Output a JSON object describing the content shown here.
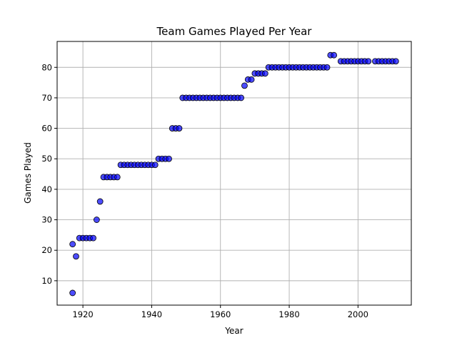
{
  "chart_data": {
    "type": "scatter",
    "title": "Team Games Played Per Year",
    "xlabel": "Year",
    "ylabel": "Games Played",
    "xlim": [
      1912.5,
      2015.5
    ],
    "ylim": [
      2,
      88.5
    ],
    "xticks": [
      1920,
      1940,
      1960,
      1980,
      2000
    ],
    "yticks": [
      10,
      20,
      30,
      40,
      50,
      60,
      70,
      80
    ],
    "grid": true,
    "marker_color": "#0000ff",
    "marker_edge_color": "#000000",
    "series": [
      {
        "points": [
          [
            1917,
            6
          ],
          [
            1917,
            22
          ],
          [
            1918,
            18
          ],
          [
            1919,
            24
          ],
          [
            1920,
            24
          ],
          [
            1921,
            24
          ],
          [
            1922,
            24
          ],
          [
            1923,
            24
          ],
          [
            1924,
            30
          ],
          [
            1925,
            36
          ],
          [
            1926,
            44
          ],
          [
            1927,
            44
          ],
          [
            1928,
            44
          ],
          [
            1929,
            44
          ],
          [
            1930,
            44
          ],
          [
            1931,
            48
          ],
          [
            1932,
            48
          ],
          [
            1933,
            48
          ],
          [
            1934,
            48
          ],
          [
            1935,
            48
          ],
          [
            1936,
            48
          ],
          [
            1937,
            48
          ],
          [
            1938,
            48
          ],
          [
            1939,
            48
          ],
          [
            1940,
            48
          ],
          [
            1941,
            48
          ],
          [
            1942,
            50
          ],
          [
            1943,
            50
          ],
          [
            1944,
            50
          ],
          [
            1945,
            50
          ],
          [
            1946,
            60
          ],
          [
            1947,
            60
          ],
          [
            1948,
            60
          ],
          [
            1949,
            70
          ],
          [
            1950,
            70
          ],
          [
            1951,
            70
          ],
          [
            1952,
            70
          ],
          [
            1953,
            70
          ],
          [
            1954,
            70
          ],
          [
            1955,
            70
          ],
          [
            1956,
            70
          ],
          [
            1957,
            70
          ],
          [
            1958,
            70
          ],
          [
            1959,
            70
          ],
          [
            1960,
            70
          ],
          [
            1961,
            70
          ],
          [
            1962,
            70
          ],
          [
            1963,
            70
          ],
          [
            1964,
            70
          ],
          [
            1965,
            70
          ],
          [
            1966,
            70
          ],
          [
            1967,
            74
          ],
          [
            1968,
            76
          ],
          [
            1969,
            76
          ],
          [
            1970,
            78
          ],
          [
            1971,
            78
          ],
          [
            1972,
            78
          ],
          [
            1973,
            78
          ],
          [
            1974,
            80
          ],
          [
            1975,
            80
          ],
          [
            1976,
            80
          ],
          [
            1977,
            80
          ],
          [
            1978,
            80
          ],
          [
            1979,
            80
          ],
          [
            1980,
            80
          ],
          [
            1981,
            80
          ],
          [
            1982,
            80
          ],
          [
            1983,
            80
          ],
          [
            1984,
            80
          ],
          [
            1985,
            80
          ],
          [
            1986,
            80
          ],
          [
            1987,
            80
          ],
          [
            1988,
            80
          ],
          [
            1989,
            80
          ],
          [
            1990,
            80
          ],
          [
            1991,
            80
          ],
          [
            1992,
            84
          ],
          [
            1993,
            84
          ],
          [
            1995,
            82
          ],
          [
            1996,
            82
          ],
          [
            1997,
            82
          ],
          [
            1998,
            82
          ],
          [
            1999,
            82
          ],
          [
            2000,
            82
          ],
          [
            2001,
            82
          ],
          [
            2002,
            82
          ],
          [
            2003,
            82
          ],
          [
            2005,
            82
          ],
          [
            2006,
            82
          ],
          [
            2007,
            82
          ],
          [
            2008,
            82
          ],
          [
            2009,
            82
          ],
          [
            2010,
            82
          ],
          [
            2011,
            82
          ]
        ]
      }
    ]
  }
}
